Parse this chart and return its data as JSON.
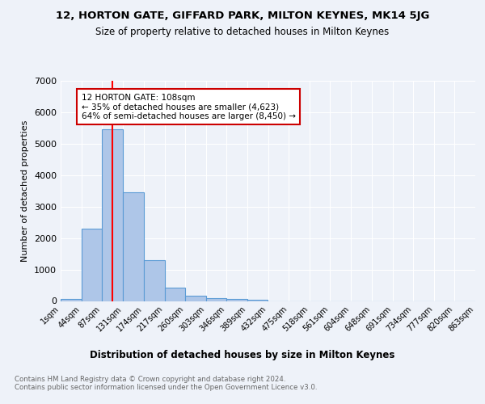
{
  "title1": "12, HORTON GATE, GIFFARD PARK, MILTON KEYNES, MK14 5JG",
  "title2": "Size of property relative to detached houses in Milton Keynes",
  "xlabel": "Distribution of detached houses by size in Milton Keynes",
  "ylabel": "Number of detached properties",
  "bar_values": [
    75,
    2300,
    5450,
    3450,
    1300,
    430,
    175,
    100,
    60,
    30,
    0,
    0,
    0,
    0,
    0,
    0,
    0,
    0,
    0,
    0
  ],
  "bin_edges": [
    1,
    44,
    87,
    131,
    174,
    217,
    260,
    303,
    346,
    389,
    432,
    475,
    518,
    561,
    604,
    648,
    691,
    734,
    777,
    820,
    863
  ],
  "x_tick_labels": [
    "1sqm",
    "44sqm",
    "87sqm",
    "131sqm",
    "174sqm",
    "217sqm",
    "260sqm",
    "303sqm",
    "346sqm",
    "389sqm",
    "432sqm",
    "475sqm",
    "518sqm",
    "561sqm",
    "604sqm",
    "648sqm",
    "691sqm",
    "734sqm",
    "777sqm",
    "820sqm",
    "863sqm"
  ],
  "bar_color": "#aec6e8",
  "bar_edgecolor": "#5b9bd5",
  "red_line_x": 108,
  "ylim": [
    0,
    7000
  ],
  "yticks": [
    0,
    1000,
    2000,
    3000,
    4000,
    5000,
    6000,
    7000
  ],
  "annotation_text": "12 HORTON GATE: 108sqm\n← 35% of detached houses are smaller (4,623)\n64% of semi-detached houses are larger (8,450) →",
  "footer_text": "Contains HM Land Registry data © Crown copyright and database right 2024.\nContains public sector information licensed under the Open Government Licence v3.0.",
  "bg_color": "#eef2f9",
  "grid_color": "#ffffff",
  "annotation_box_color": "#ffffff",
  "annotation_box_edgecolor": "#cc0000"
}
